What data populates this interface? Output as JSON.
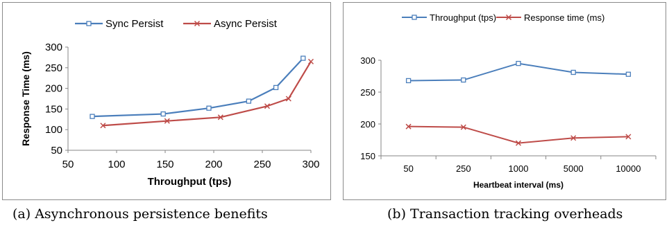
{
  "chart_data": [
    {
      "type": "line",
      "title": "",
      "xlabel": "Throughput (tps)",
      "ylabel": "Response Time (ms)",
      "xlim": [
        50,
        300
      ],
      "ylim": [
        50,
        300
      ],
      "xticks": [
        "50",
        "100",
        "150",
        "200",
        "250",
        "300"
      ],
      "yticks": [
        "50",
        "100",
        "150",
        "200",
        "250",
        "300"
      ],
      "grid": false,
      "legend": "top",
      "series": [
        {
          "name": "Sync Persist",
          "color": "#4a7ebb",
          "marker": "square",
          "points": [
            [
              75,
              132
            ],
            [
              148,
              138
            ],
            [
              195,
              152
            ],
            [
              236,
              169
            ],
            [
              264,
              202
            ],
            [
              292,
              273
            ]
          ]
        },
        {
          "name": "Async Persist",
          "color": "#be4b48",
          "marker": "x",
          "points": [
            [
              86,
              110
            ],
            [
              152,
              121
            ],
            [
              207,
              130
            ],
            [
              255,
              157
            ],
            [
              277,
              175
            ],
            [
              300,
              265
            ]
          ]
        }
      ]
    },
    {
      "type": "line",
      "title": "",
      "xlabel": "Heartbeat interval (ms)",
      "ylabel": "",
      "categories": [
        "50",
        "250",
        "1000",
        "5000",
        "10000"
      ],
      "ylim": [
        150,
        300
      ],
      "yticks": [
        "150",
        "200",
        "250",
        "300"
      ],
      "grid": false,
      "legend": "top",
      "series": [
        {
          "name": "Throughput (tps)",
          "color": "#4a7ebb",
          "marker": "square",
          "values": [
            268,
            269,
            295,
            281,
            278
          ]
        },
        {
          "name": "Response time (ms)",
          "color": "#be4b48",
          "marker": "x",
          "values": [
            196,
            195,
            170,
            178,
            180
          ]
        }
      ]
    }
  ],
  "captions": {
    "a": "(a) Asynchronous persistence benefits",
    "b": "(b) Transaction tracking overheads"
  }
}
